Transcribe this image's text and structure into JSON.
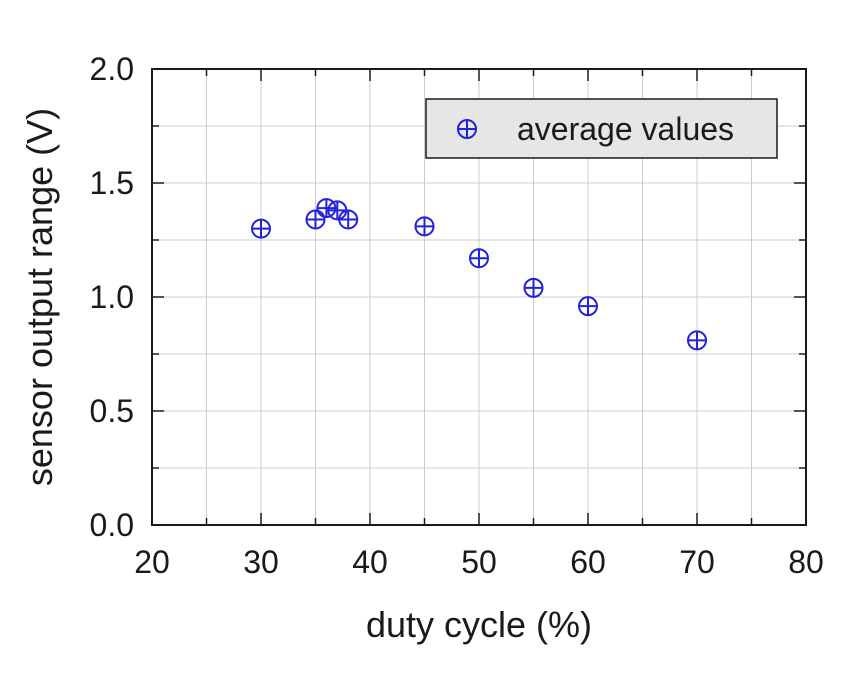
{
  "chart_data": {
    "type": "scatter",
    "xlabel": "duty cycle (%)",
    "ylabel": "sensor output range (V)",
    "xlim": [
      20,
      80
    ],
    "ylim": [
      0.0,
      2.0
    ],
    "x_ticks": [
      20,
      30,
      40,
      50,
      60,
      70,
      80
    ],
    "y_ticks": [
      0.0,
      0.5,
      1.0,
      1.5,
      2.0
    ],
    "x_tick_labels": [
      "20",
      "30",
      "40",
      "50",
      "60",
      "70",
      "80"
    ],
    "y_tick_labels": [
      "0.0",
      "0.5",
      "1.0",
      "1.5",
      "2.0"
    ],
    "grid": true,
    "legend_position": "top-right",
    "marker": "circle-plus",
    "marker_color": "#2222dd",
    "series": [
      {
        "name": "average values",
        "x": [
          30,
          35,
          36,
          37,
          38,
          45,
          50,
          55,
          60,
          70
        ],
        "y": [
          1.3,
          1.34,
          1.39,
          1.38,
          1.34,
          1.31,
          1.17,
          1.04,
          0.96,
          0.81
        ]
      }
    ]
  }
}
